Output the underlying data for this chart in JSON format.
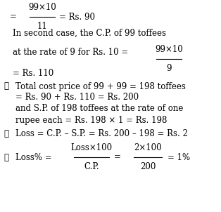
{
  "background_color": "#ffffff",
  "figsize": [
    3.14,
    3.02
  ],
  "dpi": 100,
  "fs": 8.5,
  "line1": {
    "eq": "=",
    "num": "99×10",
    "den": "11",
    "suffix": "= Rs. 90"
  },
  "line2": "In second case, the C.P. of 99 toffees",
  "line3_pre": "at the rate of 9 for Rs. 10 =",
  "line3_num": "99×10",
  "line3_den": "9",
  "line4": "= Rs. 110",
  "line5": "Total cost price of 99 + 99 = 198 toffees",
  "line6": "= Rs. 90 + Rs. 110 = Rs. 200",
  "line7": "and S.P. of 198 toffees at the rate of one",
  "line8": "rupee each = Rs. 198 × 1 = Rs. 198",
  "line9": "Loss = C.P. – S.P. = Rs. 200 – 198 = Rs. 2",
  "line10_pre": "Loss% =",
  "line10_n1": "Loss×100",
  "line10_d1": "C.P.",
  "line10_n2": "2×100",
  "line10_d2": "200",
  "line10_suf": "= 1%",
  "therefore": "∴"
}
